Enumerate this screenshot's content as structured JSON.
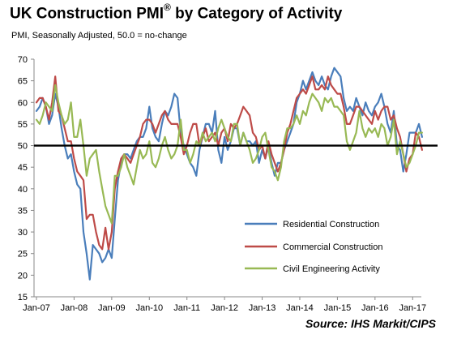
{
  "header": {
    "title_main": "UK Construction PMI",
    "title_mark": "®",
    "title_rest": " by Category of Activity",
    "subtitle": "PMI, Seasonally Adjusted, 50.0 = no-change"
  },
  "footer": {
    "source": "Source: IHS Markit/CIPS"
  },
  "chart_data": {
    "type": "line",
    "title": "UK Construction PMI® by Category of Activity",
    "subtitle": "PMI, Seasonally Adjusted, 50.0 = no-change",
    "x_tick_labels": [
      "Jan-07",
      "Jan-08",
      "Jan-09",
      "Jan-10",
      "Jan-11",
      "Jan-12",
      "Jan-13",
      "Jan-14",
      "Jan-15",
      "Jan-16",
      "Jan-17"
    ],
    "y_ticks": [
      15,
      20,
      25,
      30,
      35,
      40,
      45,
      50,
      55,
      60,
      65,
      70
    ],
    "ylim": [
      15,
      70
    ],
    "reference_line": 50,
    "grid": false,
    "legend_position": "bottom-right, inside plot",
    "x_start": "Jan-07",
    "x_step": "monthly",
    "series": [
      {
        "name": "Residential Construction",
        "color": "#4a7ebb",
        "values": [
          58,
          59,
          61,
          59,
          55,
          57,
          62,
          59,
          54,
          50,
          47,
          48,
          44,
          41,
          40,
          30,
          25,
          19,
          27,
          26,
          25,
          23,
          24,
          26,
          24,
          33,
          42,
          46,
          48,
          48,
          47,
          49,
          51,
          52,
          52,
          54,
          59,
          54,
          52,
          51,
          55,
          58,
          57,
          59,
          62,
          61,
          53,
          50,
          48,
          46,
          45,
          43,
          49,
          52,
          55,
          55,
          53,
          58,
          49,
          46,
          52,
          49,
          51,
          54,
          54,
          50,
          53,
          51,
          51,
          50,
          51,
          46,
          49,
          47,
          50,
          46,
          43,
          46,
          46,
          49,
          51,
          53,
          55,
          60,
          62,
          65,
          63,
          65,
          67,
          65,
          64,
          66,
          64,
          63,
          66,
          68,
          67,
          66,
          61,
          58,
          59,
          58,
          61,
          59,
          57,
          60,
          58,
          57,
          59,
          60,
          62,
          59,
          55,
          53,
          58,
          50,
          49,
          44,
          48,
          53,
          53,
          53,
          55,
          52
        ]
      },
      {
        "name": "Commercial Construction",
        "color": "#be4b48",
        "values": [
          60,
          61,
          61,
          59,
          56,
          60,
          66,
          58,
          57,
          54,
          51,
          51,
          47,
          44,
          43,
          42,
          33,
          34,
          34,
          30,
          27,
          26,
          31,
          26,
          30,
          40,
          44,
          47,
          48,
          47,
          46,
          48,
          50,
          52,
          55,
          56,
          56,
          55,
          53,
          55,
          57,
          58,
          56,
          55,
          55,
          55,
          52,
          48,
          50,
          53,
          55,
          55,
          50,
          52,
          54,
          51,
          52,
          53,
          50,
          53,
          54,
          51,
          55,
          54,
          55,
          57,
          59,
          58,
          57,
          53,
          52,
          49,
          50,
          47,
          51,
          48,
          46,
          44,
          46,
          49,
          53,
          55,
          58,
          61,
          62,
          63,
          62,
          64,
          66,
          63,
          63,
          64,
          63,
          66,
          64,
          63,
          62,
          62,
          59,
          55,
          55,
          57,
          59,
          59,
          58,
          57,
          56,
          55,
          58,
          56,
          58,
          59,
          59,
          56,
          57,
          54,
          52,
          48,
          44,
          47,
          48,
          53,
          52,
          49
        ]
      },
      {
        "name": "Civil Engineering Activity",
        "color": "#98b954",
        "values": [
          56,
          55,
          57,
          60,
          59,
          58,
          64,
          60,
          57,
          55,
          56,
          60,
          52,
          52,
          56,
          50,
          43,
          47,
          48,
          49,
          44,
          40,
          36,
          34,
          32,
          43,
          43,
          45,
          48,
          45,
          43,
          41,
          45,
          49,
          47,
          48,
          51,
          46,
          45,
          47,
          50,
          52,
          49,
          47,
          48,
          50,
          56,
          49,
          49,
          46,
          48,
          51,
          50,
          53,
          51,
          52,
          53,
          51,
          54,
          56,
          54,
          52,
          51,
          55,
          55,
          50,
          53,
          51,
          49,
          46,
          47,
          49,
          52,
          53,
          49,
          45,
          44,
          42,
          45,
          51,
          54,
          54,
          55,
          57,
          55,
          58,
          57,
          60,
          62,
          61,
          60,
          58,
          61,
          60,
          61,
          59,
          59,
          58,
          57,
          51,
          49,
          51,
          53,
          58,
          54,
          52,
          54,
          53,
          54,
          52,
          55,
          54,
          50,
          52,
          56,
          48,
          51,
          48,
          45,
          46,
          48,
          50,
          53,
          53
        ]
      }
    ]
  }
}
